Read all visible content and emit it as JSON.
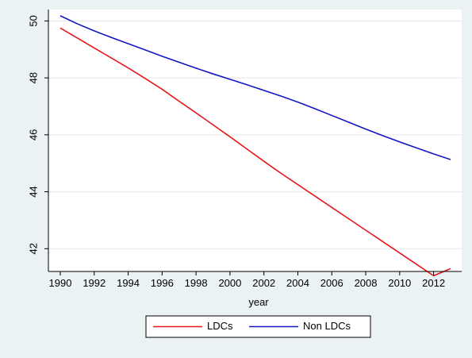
{
  "chart_data": {
    "type": "line",
    "title": "",
    "xlabel": "year",
    "ylabel": "",
    "xlim": [
      1990,
      2013
    ],
    "ylim": [
      41.2,
      50.4
    ],
    "x_ticks": [
      1990,
      1992,
      1994,
      1996,
      1998,
      2000,
      2002,
      2004,
      2006,
      2008,
      2010,
      2012
    ],
    "x_tick_labels": [
      "1990",
      "1992",
      "1994",
      "1996",
      "1998",
      "2000",
      "2002",
      "2004",
      "2006",
      "2008",
      "2010",
      "2012"
    ],
    "y_ticks": [
      42,
      44,
      46,
      48,
      50
    ],
    "y_tick_labels": [
      "42",
      "44",
      "46",
      "48",
      "50"
    ],
    "grid": "horizontal",
    "legend_position": "bottom",
    "series": [
      {
        "name": "LDCs",
        "color": "#e8161b",
        "x": [
          1990,
          1991,
          1992,
          1993,
          1994,
          1995,
          1996,
          1997,
          1998,
          1999,
          2000,
          2001,
          2002,
          2003,
          2004,
          2005,
          2006,
          2007,
          2008,
          2009,
          2010,
          2011,
          2012,
          2013
        ],
        "y": [
          49.75,
          49.4,
          49.05,
          48.7,
          48.35,
          47.98,
          47.6,
          47.18,
          46.77,
          46.35,
          45.93,
          45.5,
          45.07,
          44.65,
          44.25,
          43.85,
          43.45,
          43.05,
          42.65,
          42.25,
          41.85,
          41.45,
          41.05,
          41.3
        ]
      },
      {
        "name": "Non LDCs",
        "color": "#1414c8",
        "x": [
          1990,
          1991,
          1992,
          1993,
          1994,
          1995,
          1996,
          1997,
          1998,
          1999,
          2000,
          2001,
          2002,
          2003,
          2004,
          2005,
          2006,
          2007,
          2008,
          2009,
          2010,
          2011,
          2012,
          2013
        ],
        "y": [
          50.18,
          49.9,
          49.65,
          49.42,
          49.2,
          48.98,
          48.76,
          48.55,
          48.34,
          48.14,
          47.95,
          47.76,
          47.56,
          47.36,
          47.15,
          46.92,
          46.68,
          46.44,
          46.2,
          45.97,
          45.75,
          45.54,
          45.33,
          45.13
        ]
      }
    ]
  }
}
